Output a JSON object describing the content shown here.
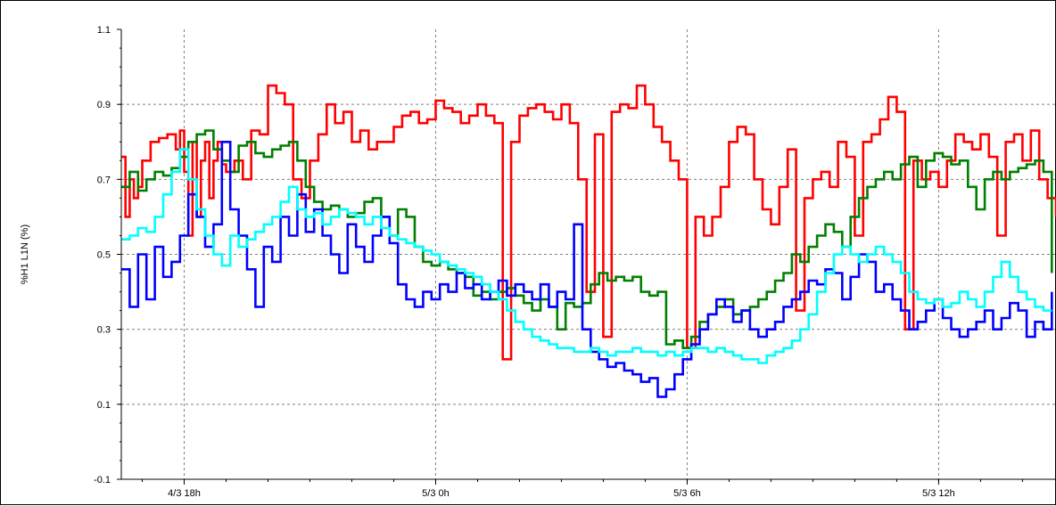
{
  "chart_data": {
    "type": "line",
    "title": "",
    "xlabel": "",
    "ylabel": "%H1 L1N (%)",
    "ylim": [
      -0.1,
      1.1
    ],
    "yticks": [
      "1.1",
      "0.9",
      "0.7",
      "0.5",
      "0.3",
      "0.1",
      "-0.1"
    ],
    "ytick_values": [
      1.1,
      0.9,
      0.7,
      0.5,
      0.3,
      0.1,
      -0.1
    ],
    "x_unit": "hours since 4/3 00h",
    "xlim": [
      16.5,
      38.8
    ],
    "xticks": [
      "4/3 18h",
      "5/3 0h",
      "5/3 6h",
      "5/3 12h"
    ],
    "xtick_values": [
      18,
      24,
      30,
      36
    ],
    "grid": true,
    "grid_style": "dashed",
    "series": [
      {
        "color": "#ff0000",
        "x": [
          16.5,
          16.6,
          16.7,
          16.8,
          16.9,
          17.0,
          17.2,
          17.4,
          17.6,
          17.8,
          17.9,
          18.0,
          18.1,
          18.2,
          18.3,
          18.4,
          18.5,
          18.6,
          18.7,
          18.8,
          18.9,
          19.0,
          19.2,
          19.4,
          19.6,
          19.8,
          20.0,
          20.2,
          20.4,
          20.6,
          20.8,
          21.0,
          21.2,
          21.4,
          21.6,
          21.8,
          22.0,
          22.2,
          22.4,
          22.6,
          22.8,
          23.0,
          23.2,
          23.4,
          23.6,
          23.8,
          24.0,
          24.2,
          24.4,
          24.6,
          24.8,
          25.0,
          25.2,
          25.4,
          25.6,
          25.8,
          26.0,
          26.2,
          26.4,
          26.6,
          26.8,
          27.0,
          27.2,
          27.4,
          27.6,
          27.8,
          28.0,
          28.2,
          28.4,
          28.6,
          28.8,
          29.0,
          29.2,
          29.4,
          29.6,
          29.8,
          30.0,
          30.2,
          30.4,
          30.6,
          30.8,
          31.0,
          31.2,
          31.4,
          31.6,
          31.8,
          32.0,
          32.2,
          32.4,
          32.6,
          32.8,
          33.0,
          33.2,
          33.4,
          33.6,
          33.8,
          34.0,
          34.2,
          34.4,
          34.6,
          34.8,
          35.0,
          35.2,
          35.4,
          35.6,
          35.8,
          36.0,
          36.2,
          36.4,
          36.6,
          36.8,
          37.0,
          37.2,
          37.4,
          37.6,
          37.8,
          38.0,
          38.2,
          38.4,
          38.6,
          38.8
        ],
        "values": [
          0.76,
          0.6,
          0.7,
          0.65,
          0.68,
          0.75,
          0.8,
          0.81,
          0.82,
          0.78,
          0.83,
          0.72,
          0.55,
          0.8,
          0.6,
          0.75,
          0.8,
          0.65,
          0.75,
          0.8,
          0.74,
          0.72,
          0.75,
          0.7,
          0.83,
          0.82,
          0.95,
          0.93,
          0.9,
          0.7,
          0.65,
          0.75,
          0.82,
          0.9,
          0.85,
          0.88,
          0.8,
          0.83,
          0.78,
          0.8,
          0.8,
          0.84,
          0.87,
          0.88,
          0.85,
          0.86,
          0.91,
          0.89,
          0.88,
          0.85,
          0.87,
          0.9,
          0.87,
          0.85,
          0.22,
          0.8,
          0.87,
          0.89,
          0.9,
          0.88,
          0.86,
          0.9,
          0.85,
          0.7,
          0.4,
          0.82,
          0.28,
          0.88,
          0.9,
          0.89,
          0.95,
          0.9,
          0.84,
          0.8,
          0.75,
          0.7,
          0.25,
          0.6,
          0.55,
          0.6,
          0.68,
          0.8,
          0.84,
          0.82,
          0.7,
          0.62,
          0.58,
          0.68,
          0.78,
          0.35,
          0.65,
          0.7,
          0.72,
          0.68,
          0.8,
          0.76,
          0.55,
          0.8,
          0.82,
          0.86,
          0.92,
          0.88,
          0.3,
          0.75,
          0.7,
          0.72,
          0.68,
          0.75,
          0.82,
          0.8,
          0.78,
          0.82,
          0.76,
          0.55,
          0.8,
          0.82,
          0.75,
          0.83,
          0.7,
          0.65,
          0.6
        ]
      },
      {
        "color": "#008000",
        "x": [
          16.5,
          16.7,
          16.9,
          17.1,
          17.3,
          17.5,
          17.7,
          17.9,
          18.1,
          18.3,
          18.5,
          18.7,
          18.9,
          19.1,
          19.3,
          19.5,
          19.7,
          19.9,
          20.1,
          20.3,
          20.5,
          20.7,
          20.9,
          21.1,
          21.3,
          21.5,
          21.7,
          21.9,
          22.1,
          22.3,
          22.5,
          22.7,
          22.9,
          23.1,
          23.3,
          23.5,
          23.7,
          23.9,
          24.1,
          24.3,
          24.5,
          24.7,
          24.9,
          25.1,
          25.3,
          25.5,
          25.7,
          25.9,
          26.1,
          26.3,
          26.5,
          26.7,
          26.9,
          27.1,
          27.3,
          27.5,
          27.7,
          27.9,
          28.1,
          28.3,
          28.5,
          28.7,
          28.9,
          29.1,
          29.3,
          29.5,
          29.7,
          29.9,
          30.1,
          30.3,
          30.5,
          30.7,
          30.9,
          31.1,
          31.3,
          31.5,
          31.7,
          31.9,
          32.1,
          32.3,
          32.5,
          32.7,
          32.9,
          33.1,
          33.3,
          33.5,
          33.7,
          33.9,
          34.1,
          34.3,
          34.5,
          34.7,
          34.9,
          35.1,
          35.3,
          35.5,
          35.7,
          35.9,
          36.1,
          36.3,
          36.5,
          36.7,
          36.9,
          37.1,
          37.3,
          37.5,
          37.7,
          37.9,
          38.1,
          38.3,
          38.5,
          38.7
        ],
        "values": [
          0.68,
          0.72,
          0.67,
          0.7,
          0.72,
          0.71,
          0.73,
          0.76,
          0.8,
          0.82,
          0.83,
          0.78,
          0.75,
          0.72,
          0.79,
          0.8,
          0.77,
          0.76,
          0.78,
          0.79,
          0.8,
          0.75,
          0.68,
          0.64,
          0.62,
          0.63,
          0.62,
          0.6,
          0.61,
          0.64,
          0.65,
          0.6,
          0.55,
          0.62,
          0.6,
          0.52,
          0.48,
          0.47,
          0.48,
          0.46,
          0.45,
          0.44,
          0.39,
          0.4,
          0.38,
          0.4,
          0.41,
          0.39,
          0.37,
          0.35,
          0.38,
          0.36,
          0.3,
          0.37,
          0.36,
          0.37,
          0.42,
          0.45,
          0.43,
          0.44,
          0.43,
          0.44,
          0.4,
          0.39,
          0.4,
          0.26,
          0.27,
          0.25,
          0.28,
          0.32,
          0.34,
          0.36,
          0.38,
          0.34,
          0.35,
          0.36,
          0.38,
          0.4,
          0.43,
          0.45,
          0.5,
          0.48,
          0.52,
          0.55,
          0.58,
          0.56,
          0.52,
          0.6,
          0.65,
          0.68,
          0.7,
          0.72,
          0.7,
          0.74,
          0.76,
          0.68,
          0.75,
          0.77,
          0.76,
          0.74,
          0.75,
          0.68,
          0.62,
          0.7,
          0.72,
          0.7,
          0.72,
          0.73,
          0.74,
          0.75,
          0.72,
          0.45
        ]
      },
      {
        "color": "#0000ff",
        "x": [
          16.5,
          16.7,
          16.9,
          17.1,
          17.3,
          17.5,
          17.7,
          17.9,
          18.1,
          18.3,
          18.5,
          18.7,
          18.9,
          19.1,
          19.3,
          19.5,
          19.7,
          19.9,
          20.1,
          20.3,
          20.5,
          20.7,
          20.9,
          21.1,
          21.3,
          21.5,
          21.7,
          21.9,
          22.1,
          22.3,
          22.5,
          22.7,
          22.9,
          23.1,
          23.3,
          23.5,
          23.7,
          23.9,
          24.1,
          24.3,
          24.5,
          24.7,
          24.9,
          25.1,
          25.3,
          25.5,
          25.7,
          25.9,
          26.1,
          26.3,
          26.5,
          26.7,
          26.9,
          27.1,
          27.3,
          27.5,
          27.7,
          27.9,
          28.1,
          28.3,
          28.5,
          28.7,
          28.9,
          29.1,
          29.3,
          29.5,
          29.7,
          29.9,
          30.1,
          30.3,
          30.5,
          30.7,
          30.9,
          31.1,
          31.3,
          31.5,
          31.7,
          31.9,
          32.1,
          32.3,
          32.5,
          32.7,
          32.9,
          33.1,
          33.3,
          33.5,
          33.7,
          33.9,
          34.1,
          34.3,
          34.5,
          34.7,
          34.9,
          35.1,
          35.3,
          35.5,
          35.7,
          35.9,
          36.1,
          36.3,
          36.5,
          36.7,
          36.9,
          37.1,
          37.3,
          37.5,
          37.7,
          37.9,
          38.1,
          38.3,
          38.5,
          38.7
        ],
        "values": [
          0.46,
          0.36,
          0.5,
          0.38,
          0.52,
          0.44,
          0.48,
          0.55,
          0.66,
          0.6,
          0.52,
          0.58,
          0.8,
          0.62,
          0.55,
          0.46,
          0.36,
          0.52,
          0.48,
          0.6,
          0.55,
          0.66,
          0.56,
          0.62,
          0.55,
          0.5,
          0.45,
          0.58,
          0.52,
          0.48,
          0.55,
          0.6,
          0.53,
          0.42,
          0.38,
          0.36,
          0.4,
          0.38,
          0.42,
          0.4,
          0.45,
          0.41,
          0.42,
          0.38,
          0.4,
          0.43,
          0.39,
          0.42,
          0.4,
          0.38,
          0.42,
          0.36,
          0.4,
          0.38,
          0.58,
          0.3,
          0.24,
          0.22,
          0.2,
          0.21,
          0.19,
          0.18,
          0.16,
          0.17,
          0.12,
          0.14,
          0.18,
          0.22,
          0.26,
          0.3,
          0.34,
          0.38,
          0.36,
          0.32,
          0.35,
          0.3,
          0.28,
          0.3,
          0.32,
          0.36,
          0.38,
          0.4,
          0.43,
          0.42,
          0.46,
          0.45,
          0.38,
          0.44,
          0.5,
          0.48,
          0.4,
          0.42,
          0.38,
          0.35,
          0.3,
          0.32,
          0.35,
          0.38,
          0.33,
          0.3,
          0.28,
          0.3,
          0.32,
          0.35,
          0.3,
          0.33,
          0.37,
          0.35,
          0.28,
          0.32,
          0.3,
          0.4
        ]
      },
      {
        "color": "#00ffff",
        "x": [
          16.5,
          16.7,
          16.9,
          17.1,
          17.3,
          17.5,
          17.7,
          17.9,
          18.1,
          18.3,
          18.5,
          18.7,
          18.9,
          19.1,
          19.3,
          19.5,
          19.7,
          19.9,
          20.1,
          20.3,
          20.5,
          20.7,
          20.9,
          21.1,
          21.3,
          21.5,
          21.7,
          21.9,
          22.1,
          22.3,
          22.5,
          22.7,
          22.9,
          23.1,
          23.3,
          23.5,
          23.7,
          23.9,
          24.1,
          24.3,
          24.5,
          24.7,
          24.9,
          25.1,
          25.3,
          25.5,
          25.7,
          25.9,
          26.1,
          26.3,
          26.5,
          26.7,
          26.9,
          27.1,
          27.3,
          27.5,
          27.7,
          27.9,
          28.1,
          28.3,
          28.5,
          28.7,
          28.9,
          29.1,
          29.3,
          29.5,
          29.7,
          29.9,
          30.1,
          30.3,
          30.5,
          30.7,
          30.9,
          31.1,
          31.3,
          31.5,
          31.7,
          31.9,
          32.1,
          32.3,
          32.5,
          32.7,
          32.9,
          33.1,
          33.3,
          33.5,
          33.7,
          33.9,
          34.1,
          34.3,
          34.5,
          34.7,
          34.9,
          35.1,
          35.3,
          35.5,
          35.7,
          35.9,
          36.1,
          36.3,
          36.5,
          36.7,
          36.9,
          37.1,
          37.3,
          37.5,
          37.7,
          37.9,
          38.1,
          38.3,
          38.5,
          38.7
        ],
        "values": [
          0.54,
          0.55,
          0.57,
          0.56,
          0.6,
          0.66,
          0.72,
          0.78,
          0.7,
          0.62,
          0.55,
          0.5,
          0.47,
          0.55,
          0.52,
          0.54,
          0.56,
          0.58,
          0.6,
          0.64,
          0.68,
          0.62,
          0.6,
          0.61,
          0.58,
          0.6,
          0.62,
          0.61,
          0.6,
          0.58,
          0.6,
          0.57,
          0.55,
          0.54,
          0.53,
          0.52,
          0.51,
          0.5,
          0.48,
          0.47,
          0.46,
          0.45,
          0.44,
          0.42,
          0.4,
          0.38,
          0.35,
          0.32,
          0.3,
          0.28,
          0.27,
          0.26,
          0.25,
          0.25,
          0.24,
          0.24,
          0.25,
          0.24,
          0.23,
          0.24,
          0.24,
          0.25,
          0.24,
          0.24,
          0.23,
          0.24,
          0.23,
          0.24,
          0.25,
          0.25,
          0.24,
          0.25,
          0.24,
          0.23,
          0.22,
          0.22,
          0.21,
          0.23,
          0.24,
          0.25,
          0.27,
          0.3,
          0.34,
          0.4,
          0.45,
          0.5,
          0.52,
          0.5,
          0.48,
          0.5,
          0.52,
          0.5,
          0.48,
          0.45,
          0.4,
          0.38,
          0.37,
          0.38,
          0.36,
          0.37,
          0.4,
          0.38,
          0.36,
          0.4,
          0.44,
          0.48,
          0.44,
          0.4,
          0.38,
          0.36,
          0.35,
          0.35
        ]
      }
    ]
  }
}
